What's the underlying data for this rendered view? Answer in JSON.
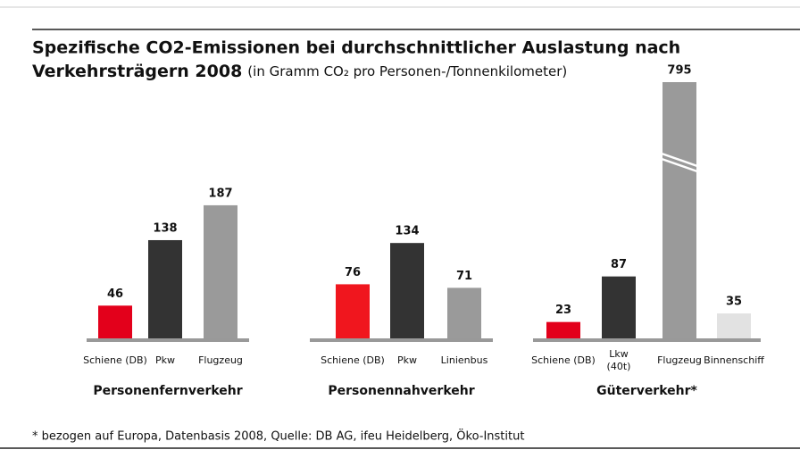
{
  "title": "Spezifische CO2-Emissionen bei durchschnittlicher Auslastung nach",
  "title_line2": "Verkehrsträgern 2008",
  "subtitle": "(in Gramm CO₂ pro Personen-/Tonnenkilometer)",
  "note": "* bezogen auf Europa, Datenbasis 2008, Quelle: DB AG, ifeu Heidelberg, Öko-Institut",
  "chart_data": [
    {
      "type": "bar",
      "title": "Personenfernverkehr",
      "categories": [
        "Schiene (DB)",
        "Pkw",
        "Flugzeug"
      ],
      "values": [
        46,
        138,
        187
      ],
      "colors": [
        "#e3001b",
        "#333333",
        "#9a9a9a"
      ],
      "ylim": [
        0,
        360
      ]
    },
    {
      "type": "bar",
      "title": "Personennahverkehr",
      "categories": [
        "Schiene (DB)",
        "Pkw",
        "Linienbus"
      ],
      "values": [
        76,
        134,
        71
      ],
      "colors": [
        "#f0161e",
        "#333333",
        "#9a9a9a"
      ],
      "ylim": [
        0,
        360
      ]
    },
    {
      "type": "bar",
      "title": "Güterverkehr*",
      "categories": [
        "Schiene (DB)",
        "Lkw\n(40t)",
        "Flugzeug",
        "Binnenschiff"
      ],
      "values": [
        23,
        87,
        795,
        35
      ],
      "colors": [
        "#e3001b",
        "#333333",
        "#9a9a9a",
        "#e2e2e2"
      ],
      "ylim": [
        0,
        360
      ],
      "axis_break": true
    }
  ]
}
